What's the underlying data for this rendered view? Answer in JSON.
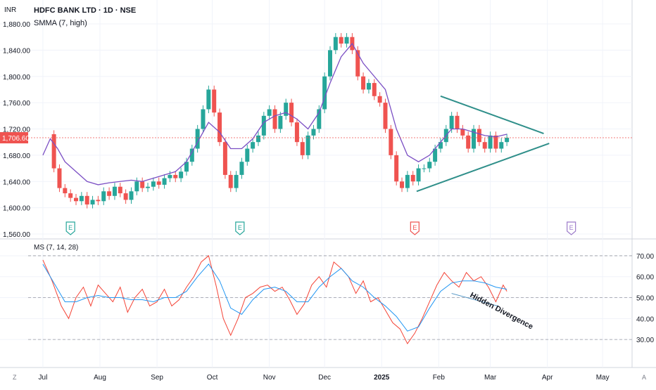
{
  "header": {
    "title": "HDFC BANK LTD · 1D · NSE",
    "indicator": "SMMA (7, high)",
    "currency": "INR",
    "last_price": "1,706.60",
    "oscillator": "MS (7, 14, 28)"
  },
  "colors": {
    "up": "#26a69a",
    "down": "#ef5350",
    "smma": "#7b4fc4",
    "trendline": "#2f8f8a",
    "ms_fast": "#f44336",
    "ms_slow": "#2196f3",
    "grid": "#f0f3fa"
  },
  "chart_data": [
    {
      "type": "candlestick",
      "title": "HDFC BANK LTD · 1D · NSE",
      "ylim": [
        1560,
        1880
      ],
      "y_ticks": [
        "1,560.00",
        "1,600.00",
        "1,640.00",
        "1,680.00",
        "1,720.00",
        "1,760.00",
        "1,800.00",
        "1,840.00",
        "1,880.00"
      ],
      "x_ticks": [
        "Jul",
        "Aug",
        "Sep",
        "Oct",
        "Nov",
        "Dec",
        "2025",
        "Feb",
        "Mar",
        "Apr",
        "May"
      ],
      "x_tick_days": [
        0,
        31,
        62,
        92,
        123,
        153,
        184,
        215,
        243,
        274,
        304
      ],
      "xlim_days": [
        -8,
        320
      ],
      "last_price": 1706.6,
      "close_series": [
        [
          3,
          1712
        ],
        [
          6,
          1660
        ],
        [
          9,
          1630
        ],
        [
          12,
          1622
        ],
        [
          15,
          1615
        ],
        [
          18,
          1610
        ],
        [
          21,
          1618
        ],
        [
          24,
          1605
        ],
        [
          27,
          1612
        ],
        [
          30,
          1610
        ],
        [
          33,
          1625
        ],
        [
          36,
          1618
        ],
        [
          39,
          1632
        ],
        [
          42,
          1622
        ],
        [
          45,
          1612
        ],
        [
          48,
          1625
        ],
        [
          51,
          1640
        ],
        [
          54,
          1630
        ],
        [
          57,
          1632
        ],
        [
          60,
          1640
        ],
        [
          63,
          1635
        ],
        [
          66,
          1645
        ],
        [
          69,
          1650
        ],
        [
          72,
          1645
        ],
        [
          75,
          1655
        ],
        [
          78,
          1670
        ],
        [
          81,
          1690
        ],
        [
          84,
          1720
        ],
        [
          87,
          1750
        ],
        [
          90,
          1780
        ],
        [
          93,
          1745
        ],
        [
          96,
          1700
        ],
        [
          99,
          1650
        ],
        [
          102,
          1630
        ],
        [
          105,
          1650
        ],
        [
          108,
          1670
        ],
        [
          111,
          1690
        ],
        [
          114,
          1700
        ],
        [
          117,
          1710
        ],
        [
          120,
          1740
        ],
        [
          123,
          1750
        ],
        [
          126,
          1720
        ],
        [
          129,
          1740
        ],
        [
          132,
          1760
        ],
        [
          135,
          1730
        ],
        [
          138,
          1700
        ],
        [
          141,
          1680
        ],
        [
          144,
          1710
        ],
        [
          147,
          1720
        ],
        [
          150,
          1750
        ],
        [
          153,
          1800
        ],
        [
          156,
          1840
        ],
        [
          159,
          1860
        ],
        [
          162,
          1850
        ],
        [
          165,
          1860
        ],
        [
          168,
          1840
        ],
        [
          171,
          1800
        ],
        [
          174,
          1780
        ],
        [
          177,
          1790
        ],
        [
          180,
          1770
        ],
        [
          183,
          1760
        ],
        [
          186,
          1720
        ],
        [
          189,
          1680
        ],
        [
          192,
          1640
        ],
        [
          195,
          1630
        ],
        [
          198,
          1650
        ],
        [
          201,
          1640
        ],
        [
          204,
          1660
        ],
        [
          207,
          1660
        ],
        [
          210,
          1670
        ],
        [
          213,
          1690
        ],
        [
          216,
          1700
        ],
        [
          219,
          1720
        ],
        [
          222,
          1740
        ],
        [
          225,
          1720
        ],
        [
          228,
          1710
        ],
        [
          231,
          1690
        ],
        [
          234,
          1720
        ],
        [
          237,
          1700
        ],
        [
          240,
          1690
        ],
        [
          243,
          1710
        ],
        [
          246,
          1690
        ],
        [
          249,
          1700
        ],
        [
          252,
          1706.6
        ]
      ],
      "smma_series": [
        [
          0,
          1680
        ],
        [
          4,
          1705
        ],
        [
          8,
          1690
        ],
        [
          12,
          1670
        ],
        [
          18,
          1655
        ],
        [
          24,
          1640
        ],
        [
          30,
          1635
        ],
        [
          36,
          1638
        ],
        [
          42,
          1640
        ],
        [
          48,
          1642
        ],
        [
          54,
          1640
        ],
        [
          60,
          1645
        ],
        [
          66,
          1650
        ],
        [
          72,
          1655
        ],
        [
          78,
          1670
        ],
        [
          84,
          1700
        ],
        [
          90,
          1730
        ],
        [
          96,
          1715
        ],
        [
          102,
          1690
        ],
        [
          108,
          1690
        ],
        [
          114,
          1705
        ],
        [
          120,
          1730
        ],
        [
          126,
          1740
        ],
        [
          132,
          1745
        ],
        [
          138,
          1735
        ],
        [
          144,
          1720
        ],
        [
          150,
          1745
        ],
        [
          156,
          1790
        ],
        [
          162,
          1830
        ],
        [
          168,
          1850
        ],
        [
          174,
          1820
        ],
        [
          180,
          1800
        ],
        [
          186,
          1780
        ],
        [
          192,
          1720
        ],
        [
          198,
          1680
        ],
        [
          204,
          1670
        ],
        [
          210,
          1680
        ],
        [
          216,
          1700
        ],
        [
          222,
          1720
        ],
        [
          228,
          1720
        ],
        [
          234,
          1715
        ],
        [
          240,
          1710
        ],
        [
          246,
          1708
        ],
        [
          252,
          1712
        ]
      ],
      "triangle": {
        "upper": [
          [
            216,
            1770
          ],
          [
            272,
            1713
          ]
        ],
        "lower": [
          [
            203,
            1625
          ],
          [
            275,
            1698
          ]
        ]
      },
      "event_markers": [
        {
          "label": "E",
          "day": 15,
          "color": "#26a69a"
        },
        {
          "label": "E",
          "day": 107,
          "color": "#26a69a"
        },
        {
          "label": "E",
          "day": 202,
          "color": "#ef5350"
        },
        {
          "label": "E",
          "day": 287,
          "color": "#9c7bc9"
        }
      ]
    },
    {
      "type": "line",
      "title": "MS (7, 14, 28)",
      "ylim": [
        25,
        73
      ],
      "y_ticks": [
        "30.00",
        "40.00",
        "50.00",
        "60.00",
        "70.00"
      ],
      "hlines": [
        70,
        50,
        30
      ],
      "annotation": "Hidden Divergence",
      "series": [
        {
          "color": "#f44336",
          "points": [
            [
              0,
              68
            ],
            [
              5,
              58
            ],
            [
              10,
              46
            ],
            [
              14,
              40
            ],
            [
              18,
              50
            ],
            [
              22,
              55
            ],
            [
              26,
              46
            ],
            [
              30,
              56
            ],
            [
              34,
              52
            ],
            [
              38,
              48
            ],
            [
              42,
              55
            ],
            [
              46,
              43
            ],
            [
              50,
              50
            ],
            [
              54,
              54
            ],
            [
              58,
              46
            ],
            [
              62,
              48
            ],
            [
              66,
              54
            ],
            [
              70,
              46
            ],
            [
              74,
              49
            ],
            [
              78,
              55
            ],
            [
              82,
              60
            ],
            [
              86,
              67
            ],
            [
              90,
              70
            ],
            [
              94,
              56
            ],
            [
              98,
              40
            ],
            [
              102,
              32
            ],
            [
              106,
              40
            ],
            [
              110,
              50
            ],
            [
              114,
              52
            ],
            [
              118,
              55
            ],
            [
              122,
              56
            ],
            [
              126,
              53
            ],
            [
              130,
              55
            ],
            [
              134,
              49
            ],
            [
              138,
              42
            ],
            [
              142,
              47
            ],
            [
              146,
              56
            ],
            [
              150,
              60
            ],
            [
              154,
              55
            ],
            [
              158,
              67
            ],
            [
              162,
              64
            ],
            [
              166,
              60
            ],
            [
              170,
              52
            ],
            [
              174,
              58
            ],
            [
              178,
              48
            ],
            [
              182,
              50
            ],
            [
              186,
              44
            ],
            [
              190,
              38
            ],
            [
              194,
              35
            ],
            [
              198,
              28
            ],
            [
              202,
              33
            ],
            [
              206,
              40
            ],
            [
              210,
              48
            ],
            [
              214,
              56
            ],
            [
              218,
              62
            ],
            [
              222,
              58
            ],
            [
              226,
              55
            ],
            [
              230,
              62
            ],
            [
              234,
              58
            ],
            [
              238,
              60
            ],
            [
              242,
              55
            ],
            [
              246,
              48
            ],
            [
              250,
              56
            ],
            [
              252,
              53
            ]
          ]
        },
        {
          "color": "#2196f3",
          "points": [
            [
              0,
              66
            ],
            [
              6,
              57
            ],
            [
              12,
              48
            ],
            [
              18,
              48
            ],
            [
              24,
              50
            ],
            [
              30,
              51
            ],
            [
              36,
              50
            ],
            [
              42,
              50
            ],
            [
              48,
              49
            ],
            [
              54,
              49
            ],
            [
              60,
              48
            ],
            [
              66,
              50
            ],
            [
              72,
              50
            ],
            [
              78,
              53
            ],
            [
              84,
              60
            ],
            [
              90,
              66
            ],
            [
              96,
              58
            ],
            [
              102,
              45
            ],
            [
              108,
              42
            ],
            [
              114,
              49
            ],
            [
              120,
              54
            ],
            [
              126,
              55
            ],
            [
              132,
              53
            ],
            [
              138,
              48
            ],
            [
              144,
              48
            ],
            [
              150,
              55
            ],
            [
              156,
              60
            ],
            [
              162,
              64
            ],
            [
              168,
              58
            ],
            [
              174,
              55
            ],
            [
              180,
              50
            ],
            [
              186,
              46
            ],
            [
              192,
              41
            ],
            [
              198,
              34
            ],
            [
              204,
              36
            ],
            [
              210,
              45
            ],
            [
              216,
              53
            ],
            [
              222,
              57
            ],
            [
              228,
              58
            ],
            [
              234,
              58
            ],
            [
              240,
              57
            ],
            [
              246,
              55
            ],
            [
              252,
              54
            ]
          ]
        }
      ]
    }
  ]
}
